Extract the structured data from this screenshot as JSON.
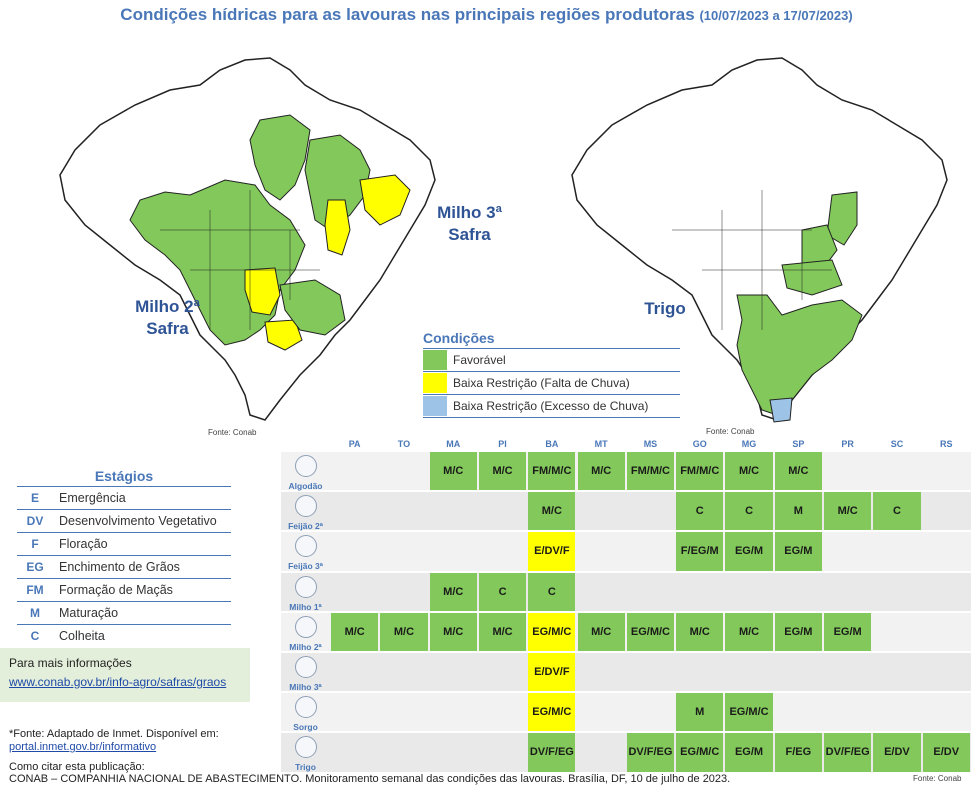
{
  "title": {
    "main": "Condições hídricas para as lavouras nas principais regiões produtoras",
    "dates": "(10/07/2023 a 17/07/2023)"
  },
  "maps": {
    "left": {
      "label_a": "Milho 2ª",
      "label_a2": "Safra",
      "label_b": "Milho 3ª",
      "label_b2": "Safra",
      "fonte": "Fonte: Conab"
    },
    "right": {
      "label": "Trigo",
      "fonte": "Fonte: Conab"
    }
  },
  "conditions": {
    "title": "Condições",
    "items": [
      {
        "label": "Favorável",
        "color": "#82c85a"
      },
      {
        "label": "Baixa Restrição (Falta de Chuva)",
        "color": "#ffff00"
      },
      {
        "label": "Baixa Restrição (Excesso de Chuva)",
        "color": "#9dc3e6"
      }
    ]
  },
  "stages": {
    "title": "Estágios",
    "items": [
      {
        "code": "E",
        "label": "Emergência"
      },
      {
        "code": "DV",
        "label": "Desenvolvimento Vegetativo"
      },
      {
        "code": "F",
        "label": "Floração"
      },
      {
        "code": "EG",
        "label": "Enchimento de Grãos"
      },
      {
        "code": "FM",
        "label": "Formação de Maçãs"
      },
      {
        "code": "M",
        "label": "Maturação"
      },
      {
        "code": "C",
        "label": "Colheita"
      }
    ]
  },
  "info": {
    "title": "Para mais informações",
    "link": "www.conab.gov.br/info-agro/safras/graos"
  },
  "source": {
    "text": "*Fonte: Adaptado de Inmet. Disponível em:",
    "link": "portal.inmet.gov.br/informativo"
  },
  "citation": {
    "title": "Como citar esta publicação:",
    "text": "CONAB – COMPANHIA NACIONAL DE ABASTECIMENTO. Monitoramento semanal das condições das lavouras. Brasília, DF, 10 de julho de 2023."
  },
  "footer": {
    "fonte": "Fonte: Conab"
  },
  "table": {
    "states": [
      "PA",
      "TO",
      "MA",
      "PI",
      "BA",
      "MT",
      "MS",
      "GO",
      "MG",
      "SP",
      "PR",
      "SC",
      "RS"
    ],
    "rows": [
      {
        "crop": "Algodão",
        "cells": [
          null,
          null,
          {
            "t": "M/C",
            "c": "g"
          },
          {
            "t": "M/C",
            "c": "g"
          },
          {
            "t": "FM/M/C",
            "c": "g"
          },
          {
            "t": "M/C",
            "c": "g"
          },
          {
            "t": "FM/M/C",
            "c": "g"
          },
          {
            "t": "FM/M/C",
            "c": "g"
          },
          {
            "t": "M/C",
            "c": "g"
          },
          {
            "t": "M/C",
            "c": "g"
          },
          null,
          null,
          null
        ]
      },
      {
        "crop": "Feijão 2ª",
        "cells": [
          null,
          null,
          null,
          null,
          {
            "t": "M/C",
            "c": "g"
          },
          null,
          null,
          {
            "t": "C",
            "c": "g"
          },
          {
            "t": "C",
            "c": "g"
          },
          {
            "t": "M",
            "c": "g"
          },
          {
            "t": "M/C",
            "c": "g"
          },
          {
            "t": "C",
            "c": "g"
          },
          null
        ]
      },
      {
        "crop": "Feijão 3ª",
        "cells": [
          null,
          null,
          null,
          null,
          {
            "t": "E/DV/F",
            "c": "y"
          },
          null,
          null,
          {
            "t": "F/EG/M",
            "c": "g"
          },
          {
            "t": "EG/M",
            "c": "g"
          },
          {
            "t": "EG/M",
            "c": "g"
          },
          null,
          null,
          null
        ]
      },
      {
        "crop": "Milho 1ª",
        "cells": [
          null,
          null,
          {
            "t": "M/C",
            "c": "g"
          },
          {
            "t": "C",
            "c": "g"
          },
          {
            "t": "C",
            "c": "g"
          },
          null,
          null,
          null,
          null,
          null,
          null,
          null,
          null
        ]
      },
      {
        "crop": "Milho 2ª",
        "cells": [
          {
            "t": "M/C",
            "c": "g"
          },
          {
            "t": "M/C",
            "c": "g"
          },
          {
            "t": "M/C",
            "c": "g"
          },
          {
            "t": "M/C",
            "c": "g"
          },
          {
            "t": "EG/M/C",
            "c": "y"
          },
          {
            "t": "M/C",
            "c": "g"
          },
          {
            "t": "EG/M/C",
            "c": "g"
          },
          {
            "t": "M/C",
            "c": "g"
          },
          {
            "t": "M/C",
            "c": "g"
          },
          {
            "t": "EG/M",
            "c": "g"
          },
          {
            "t": "EG/M",
            "c": "g"
          },
          null,
          null
        ]
      },
      {
        "crop": "Milho 3ª",
        "cells": [
          null,
          null,
          null,
          null,
          {
            "t": "E/DV/F",
            "c": "y"
          },
          null,
          null,
          null,
          null,
          null,
          null,
          null,
          null
        ]
      },
      {
        "crop": "Sorgo",
        "cells": [
          null,
          null,
          null,
          null,
          {
            "t": "EG/M/C",
            "c": "y"
          },
          null,
          null,
          {
            "t": "M",
            "c": "g"
          },
          {
            "t": "EG/M/C",
            "c": "g"
          },
          null,
          null,
          null,
          null
        ]
      },
      {
        "crop": "Trigo",
        "cells": [
          null,
          null,
          null,
          null,
          {
            "t": "DV/F/EG",
            "c": "g"
          },
          null,
          {
            "t": "DV/F/EG",
            "c": "g"
          },
          {
            "t": "EG/M/C",
            "c": "g"
          },
          {
            "t": "EG/M",
            "c": "g"
          },
          {
            "t": "F/EG",
            "c": "g"
          },
          {
            "t": "DV/F/EG",
            "c": "g"
          },
          {
            "t": "E/DV",
            "c": "g"
          },
          {
            "t": "E/DV",
            "c": "g"
          }
        ]
      }
    ]
  }
}
